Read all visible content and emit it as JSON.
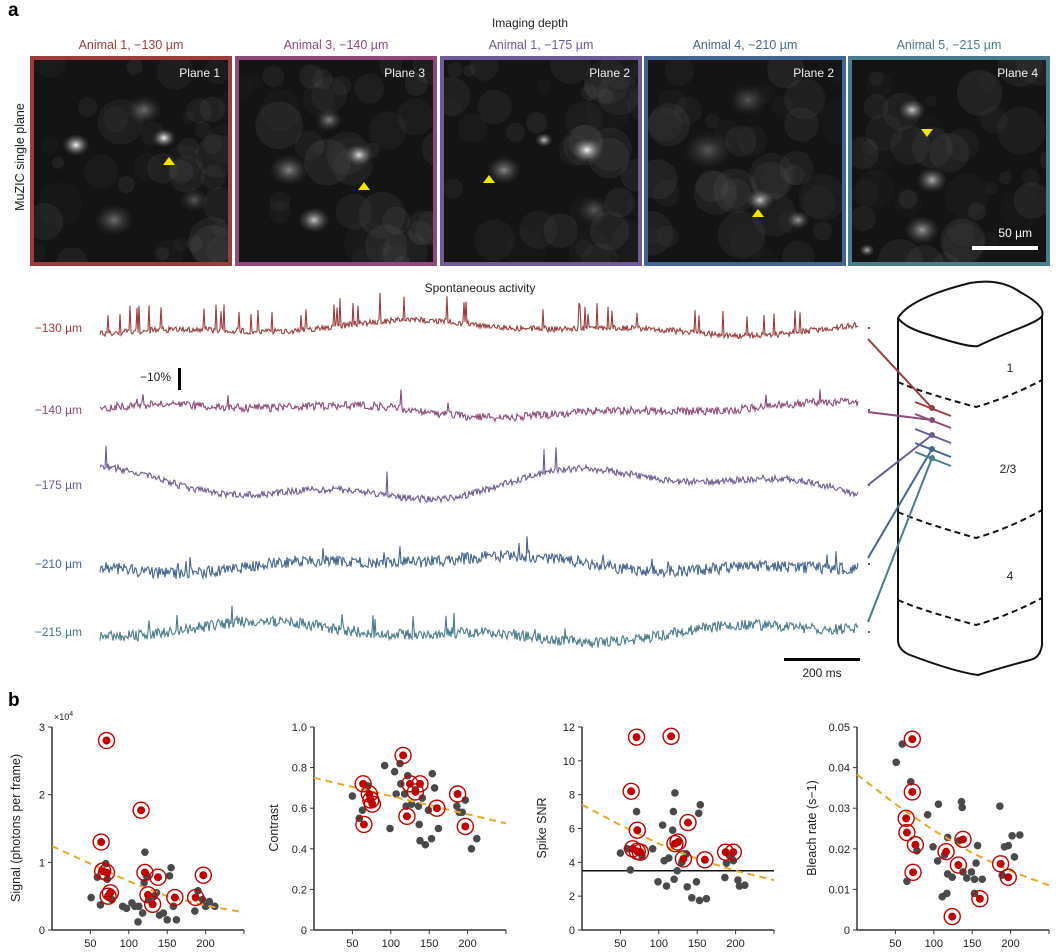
{
  "figure": {
    "panel_a_letter": "a",
    "panel_b_letter": "b",
    "imaging_depth_title": "Imaging depth",
    "row_label": "MuZIC single plane",
    "spontaneous_title": "Spontaneous activity",
    "scale_bar_image": "50 µm",
    "scale_bar_dff": "−10%",
    "scale_bar_time": "200 ms",
    "images": [
      {
        "title": "Animal 1, −130 µm",
        "plane": "Plane 1",
        "color": "#9b3d3d"
      },
      {
        "title": "Animal 3, −140 µm",
        "plane": "Plane 3",
        "color": "#8d4a7a"
      },
      {
        "title": "Animal 1, −175 µm",
        "plane": "Plane 2",
        "color": "#6d5b93"
      },
      {
        "title": "Animal 4, −210 µm",
        "plane": "Plane 2",
        "color": "#44658f"
      },
      {
        "title": "Animal 5, −215 µm",
        "plane": "Plane 4",
        "color": "#4a7c8c"
      }
    ],
    "traces": [
      {
        "label": "−130 µm",
        "color": "#9b3d3d"
      },
      {
        "label": "−140 µm",
        "color": "#8d4a7a"
      },
      {
        "label": "−175 µm",
        "color": "#6d5b93"
      },
      {
        "label": "−210 µm",
        "color": "#44658f"
      },
      {
        "label": "−215 µm",
        "color": "#4a7c8c"
      }
    ],
    "cortex_layers": [
      "1",
      "2/3",
      "4"
    ]
  },
  "chart_data": [
    {
      "type": "scatter",
      "title": "",
      "xlabel": "",
      "ylabel": "Signal (photons per frame)",
      "y_multiplier_label": "×10",
      "y_multiplier_exp": "4",
      "xlim": [
        0,
        250
      ],
      "ylim": [
        0,
        3
      ],
      "xticks": [
        "50",
        "100",
        "150",
        "200"
      ],
      "yticks": [
        "0",
        "1",
        "2",
        "3"
      ],
      "xtick_values": [
        50,
        100,
        150,
        200
      ],
      "ytick_values": [
        0,
        1,
        2,
        3
      ],
      "fit_curve": {
        "style": "dashed",
        "color": "#e8a826",
        "points": [
          [
            0,
            1.24
          ],
          [
            50,
            0.98
          ],
          [
            100,
            0.72
          ],
          [
            150,
            0.5
          ],
          [
            200,
            0.36
          ],
          [
            250,
            0.26
          ]
        ]
      },
      "gray_points": [
        [
          51,
          0.48
        ],
        [
          59,
          0.78
        ],
        [
          63,
          0.37
        ],
        [
          70,
          0.98
        ],
        [
          72,
          0.75
        ],
        [
          78,
          0.45
        ],
        [
          92,
          0.35
        ],
        [
          97,
          0.32
        ],
        [
          104,
          0.4
        ],
        [
          108,
          0.35
        ],
        [
          112,
          0.12
        ],
        [
          113,
          0.35
        ],
        [
          118,
          0.25
        ],
        [
          120,
          0.7
        ],
        [
          121,
          1.15
        ],
        [
          123,
          0.8
        ],
        [
          126,
          0.45
        ],
        [
          133,
          0.5
        ],
        [
          136,
          0.55
        ],
        [
          140,
          0.22
        ],
        [
          145,
          0.25
        ],
        [
          150,
          0.15
        ],
        [
          153,
          0.8
        ],
        [
          155,
          0.92
        ],
        [
          158,
          0.35
        ],
        [
          162,
          0.15
        ],
        [
          186,
          0.28
        ],
        [
          190,
          0.58
        ],
        [
          196,
          0.45
        ],
        [
          200,
          0.35
        ],
        [
          205,
          0.42
        ],
        [
          212,
          0.35
        ]
      ],
      "red_points": [
        [
          71,
          2.8
        ],
        [
          116,
          1.77
        ],
        [
          64,
          1.3
        ],
        [
          66,
          0.87
        ],
        [
          71,
          0.85
        ],
        [
          73,
          0.5
        ],
        [
          76,
          0.55
        ],
        [
          121,
          0.85
        ],
        [
          125,
          0.52
        ],
        [
          131,
          0.38
        ],
        [
          138,
          0.78
        ],
        [
          160,
          0.48
        ],
        [
          187,
          0.48
        ],
        [
          197,
          0.81
        ]
      ]
    },
    {
      "type": "scatter",
      "title": "",
      "xlabel": "",
      "ylabel": "Contrast",
      "xlim": [
        0,
        250
      ],
      "ylim": [
        0,
        1.0
      ],
      "xticks": [
        "50",
        "100",
        "150",
        "200"
      ],
      "yticks": [
        "0",
        "0.2",
        "0.4",
        "0.6",
        "0.8",
        "1.0"
      ],
      "xtick_values": [
        50,
        100,
        150,
        200
      ],
      "ytick_values": [
        0,
        0.2,
        0.4,
        0.6,
        0.8,
        1.0
      ],
      "fit_curve": {
        "style": "dashed",
        "color": "#e8a826",
        "points": [
          [
            0,
            0.75
          ],
          [
            250,
            0.525
          ]
        ]
      },
      "gray_points": [
        [
          50,
          0.66
        ],
        [
          59,
          0.55
        ],
        [
          63,
          0.59
        ],
        [
          70,
          0.71
        ],
        [
          92,
          0.81
        ],
        [
          99,
          0.5
        ],
        [
          105,
          0.78
        ],
        [
          107,
          0.67
        ],
        [
          112,
          0.82
        ],
        [
          113,
          0.72
        ],
        [
          118,
          0.67
        ],
        [
          120,
          0.61
        ],
        [
          122,
          0.76
        ],
        [
          127,
          0.62
        ],
        [
          132,
          0.69
        ],
        [
          136,
          0.61
        ],
        [
          137,
          0.52
        ],
        [
          138,
          0.44
        ],
        [
          141,
          0.65
        ],
        [
          145,
          0.42
        ],
        [
          149,
          0.59
        ],
        [
          153,
          0.45
        ],
        [
          154,
          0.77
        ],
        [
          157,
          0.7
        ],
        [
          162,
          0.5
        ],
        [
          186,
          0.61
        ],
        [
          189,
          0.58
        ],
        [
          193,
          0.58
        ],
        [
          197,
          0.64
        ],
        [
          205,
          0.4
        ],
        [
          212,
          0.45
        ]
      ],
      "red_points": [
        [
          64,
          0.72
        ],
        [
          65,
          0.52
        ],
        [
          72,
          0.67
        ],
        [
          74,
          0.64
        ],
        [
          76,
          0.62
        ],
        [
          116,
          0.86
        ],
        [
          121,
          0.56
        ],
        [
          125,
          0.72
        ],
        [
          132,
          0.68
        ],
        [
          138,
          0.72
        ],
        [
          160,
          0.6
        ],
        [
          187,
          0.67
        ],
        [
          197,
          0.51
        ]
      ]
    },
    {
      "type": "scatter",
      "title": "",
      "xlabel": "",
      "ylabel": "Spike SNR",
      "xlim": [
        0,
        250
      ],
      "ylim": [
        0,
        12
      ],
      "xticks": [
        "50",
        "100",
        "150",
        "200"
      ],
      "yticks": [
        "0",
        "2",
        "4",
        "6",
        "8",
        "10",
        "12"
      ],
      "xtick_values": [
        50,
        100,
        150,
        200
      ],
      "ytick_values": [
        0,
        2,
        4,
        6,
        8,
        10,
        12
      ],
      "threshold_line": 3.5,
      "fit_curve": {
        "style": "dashed",
        "color": "#e8a826",
        "points": [
          [
            0,
            7.4
          ],
          [
            50,
            6.2
          ],
          [
            100,
            5.1
          ],
          [
            150,
            4.2
          ],
          [
            200,
            3.5
          ],
          [
            250,
            2.95
          ]
        ]
      },
      "gray_points": [
        [
          50,
          4.55
        ],
        [
          59,
          4.8
        ],
        [
          63,
          3.55
        ],
        [
          71,
          7.0
        ],
        [
          78,
          4.4
        ],
        [
          92,
          4.8
        ],
        [
          99,
          2.85
        ],
        [
          105,
          6.2
        ],
        [
          107,
          4.1
        ],
        [
          110,
          2.6
        ],
        [
          113,
          4.25
        ],
        [
          118,
          5.9
        ],
        [
          119,
          7.0
        ],
        [
          120,
          3.0
        ],
        [
          121,
          8.1
        ],
        [
          124,
          3.5
        ],
        [
          130,
          4.0
        ],
        [
          136,
          4.5
        ],
        [
          137,
          2.55
        ],
        [
          143,
          1.9
        ],
        [
          149,
          2.85
        ],
        [
          153,
          1.75
        ],
        [
          152,
          6.9
        ],
        [
          154,
          7.4
        ],
        [
          162,
          1.85
        ],
        [
          186,
          3.1
        ],
        [
          188,
          3.95
        ],
        [
          194,
          4.4
        ],
        [
          197,
          4.1
        ],
        [
          203,
          2.95
        ],
        [
          205,
          2.6
        ],
        [
          212,
          2.65
        ]
      ],
      "red_points": [
        [
          64,
          8.2
        ],
        [
          71,
          11.4
        ],
        [
          72,
          5.9
        ],
        [
          66,
          4.8
        ],
        [
          72,
          4.65
        ],
        [
          76,
          4.6
        ],
        [
          116,
          11.45
        ],
        [
          121,
          5.1
        ],
        [
          125,
          5.2
        ],
        [
          132,
          4.2
        ],
        [
          138,
          6.35
        ],
        [
          160,
          4.15
        ],
        [
          187,
          4.6
        ],
        [
          197,
          4.6
        ]
      ]
    },
    {
      "type": "scatter",
      "title": "",
      "xlabel": "",
      "ylabel": "Bleach rate (s−1)",
      "xlim": [
        0,
        250
      ],
      "ylim": [
        0,
        0.05
      ],
      "xticks": [
        "50",
        "100",
        "150",
        "200"
      ],
      "yticks": [
        "0",
        "0.01",
        "0.02",
        "0.03",
        "0.04",
        "0.05"
      ],
      "xtick_values": [
        50,
        100,
        150,
        200
      ],
      "ytick_values": [
        0,
        0.01,
        0.02,
        0.03,
        0.04,
        0.05
      ],
      "fit_curve": {
        "style": "dashed",
        "color": "#e8a826",
        "points": [
          [
            0,
            0.0383
          ],
          [
            50,
            0.031
          ],
          [
            100,
            0.0245
          ],
          [
            150,
            0.019
          ],
          [
            200,
            0.0145
          ],
          [
            250,
            0.011
          ]
        ]
      },
      "gray_points": [
        [
          51,
          0.0413
        ],
        [
          59,
          0.0458
        ],
        [
          65,
          0.012
        ],
        [
          70,
          0.0365
        ],
        [
          78,
          0.0195
        ],
        [
          92,
          0.0284
        ],
        [
          99,
          0.0205
        ],
        [
          105,
          0.017
        ],
        [
          106,
          0.031
        ],
        [
          111,
          0.0082
        ],
        [
          114,
          0.0185
        ],
        [
          117,
          0.009
        ],
        [
          118,
          0.0228
        ],
        [
          118,
          0.0138
        ],
        [
          124,
          0.013
        ],
        [
          133,
          0.022
        ],
        [
          136,
          0.0316
        ],
        [
          137,
          0.0302
        ],
        [
          138,
          0.0143
        ],
        [
          143,
          0.0128
        ],
        [
          149,
          0.0143
        ],
        [
          153,
          0.0125
        ],
        [
          153,
          0.009
        ],
        [
          155,
          0.0165
        ],
        [
          157,
          0.0208
        ],
        [
          163,
          0.0125
        ],
        [
          186,
          0.0305
        ],
        [
          189,
          0.0135
        ],
        [
          192,
          0.0205
        ],
        [
          197,
          0.0208
        ],
        [
          202,
          0.0232
        ],
        [
          205,
          0.018
        ],
        [
          212,
          0.0234
        ]
      ],
      "red_points": [
        [
          72,
          0.047
        ],
        [
          72,
          0.034
        ],
        [
          64,
          0.0275
        ],
        [
          65,
          0.024
        ],
        [
          76,
          0.021
        ],
        [
          73,
          0.0142
        ],
        [
          116,
          0.0193
        ],
        [
          124,
          0.0033
        ],
        [
          132,
          0.016
        ],
        [
          138,
          0.0223
        ],
        [
          160,
          0.0077
        ],
        [
          187,
          0.0163
        ],
        [
          197,
          0.013
        ]
      ]
    }
  ]
}
